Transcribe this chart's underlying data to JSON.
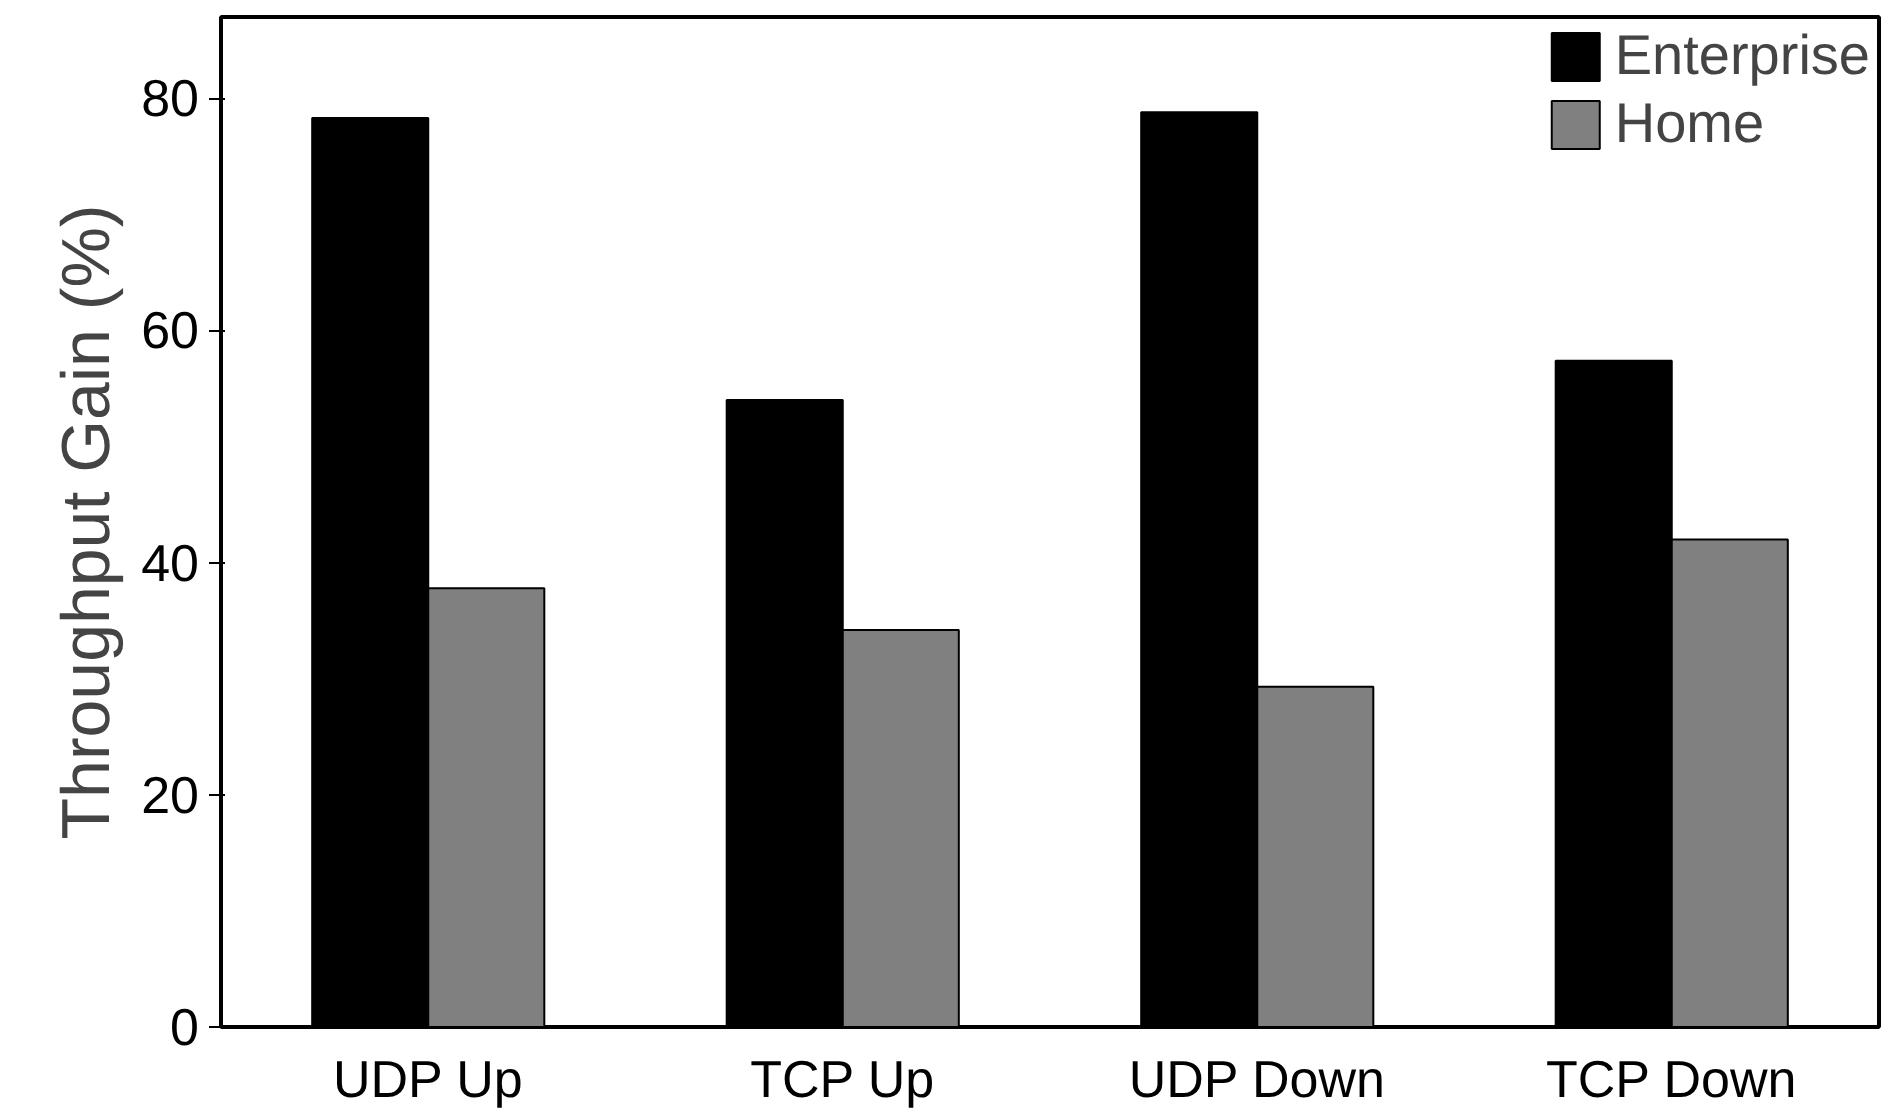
{
  "chart_data": {
    "type": "bar",
    "ylabel": "Throughput Gain (%)",
    "categories": [
      "UDP Up",
      "TCP Up",
      "UDP Down",
      "TCP Down"
    ],
    "series": [
      {
        "name": "Enterprise",
        "color": "#000000",
        "values": [
          78.3,
          54.0,
          78.8,
          57.4
        ]
      },
      {
        "name": "Home",
        "color": "#808080",
        "values": [
          37.8,
          34.2,
          29.3,
          42.0
        ]
      }
    ],
    "ylim": [
      0,
      87
    ],
    "yticks": [
      0,
      20,
      40,
      60,
      80
    ],
    "grid": false,
    "legend": "top right"
  }
}
